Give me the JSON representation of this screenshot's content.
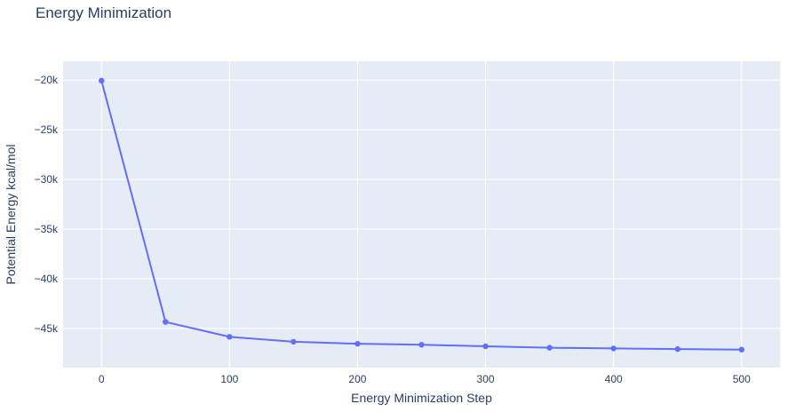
{
  "colors": {
    "title_text": "#2a3f5f",
    "axis_text": "#2a3f5f",
    "paper_background": "#ffffff",
    "plot_background": "#e5ecf6",
    "grid": "#ffffff",
    "series": "#636efa"
  },
  "chart_data": {
    "type": "line",
    "mode": "lines+markers",
    "title": "Energy Minimization",
    "xlabel": "Energy Minimization Step",
    "ylabel": "Potential Energy kcal/mol",
    "legend": "none",
    "grid": true,
    "x": [
      0,
      50,
      100,
      150,
      200,
      250,
      300,
      350,
      400,
      450,
      500
    ],
    "y": [
      -20050,
      -44350,
      -45850,
      -46350,
      -46550,
      -46650,
      -46800,
      -46950,
      -47020,
      -47080,
      -47140
    ],
    "xlim": [
      -30,
      530
    ],
    "ylim": [
      -48950,
      -18100
    ],
    "x_ticks": [
      {
        "value": 0,
        "label": "0"
      },
      {
        "value": 100,
        "label": "100"
      },
      {
        "value": 200,
        "label": "200"
      },
      {
        "value": 300,
        "label": "300"
      },
      {
        "value": 400,
        "label": "400"
      },
      {
        "value": 500,
        "label": "500"
      }
    ],
    "y_ticks": [
      {
        "value": -20000,
        "label": "−20k"
      },
      {
        "value": -25000,
        "label": "−25k"
      },
      {
        "value": -30000,
        "label": "−30k"
      },
      {
        "value": -35000,
        "label": "−35k"
      },
      {
        "value": -40000,
        "label": "−40k"
      },
      {
        "value": -45000,
        "label": "−45k"
      }
    ],
    "line_color": "#636efa",
    "marker_color": "#636efa",
    "plot_bgcolor": "#e5ecf6",
    "grid_color": "#ffffff",
    "font_color": "#2a3f5f"
  }
}
